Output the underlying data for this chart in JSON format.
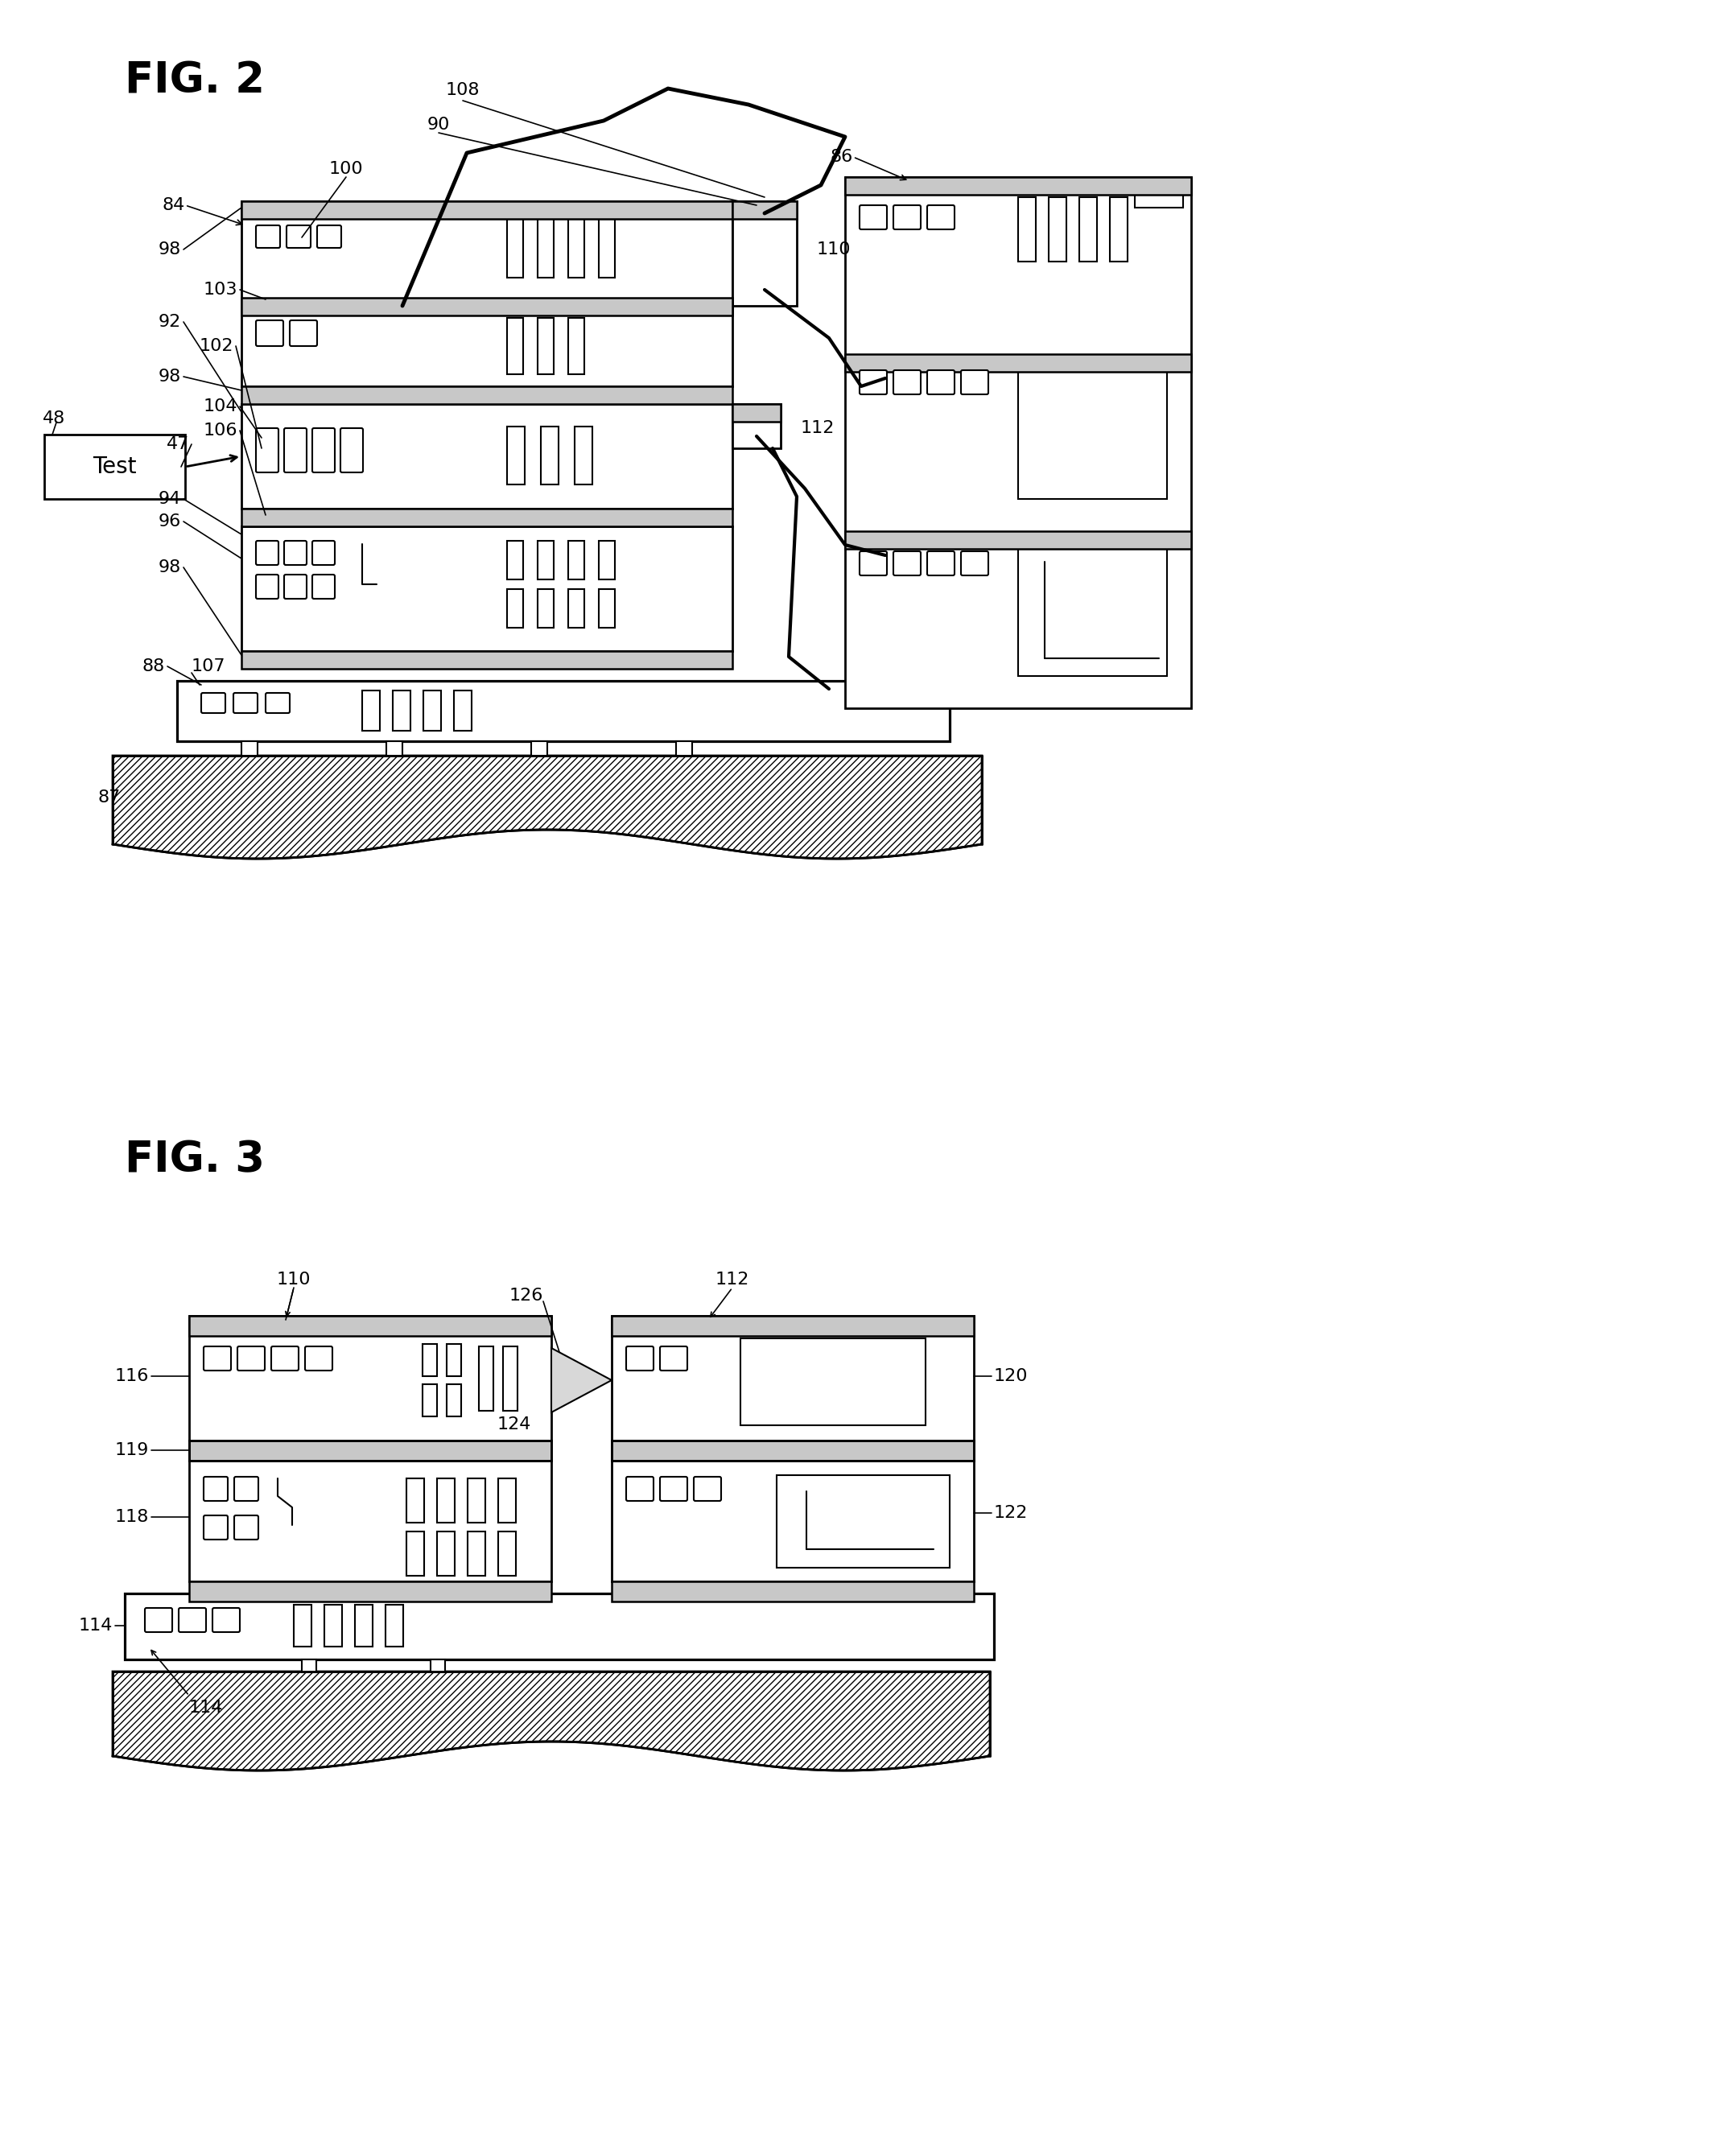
{
  "bg_color": "#ffffff",
  "fig2_title": "FIG. 2",
  "fig3_title": "FIG. 3",
  "dot_fill": "#c8c8c8",
  "lw_main": 2.0,
  "lw_inner": 1.5,
  "font_label": 16,
  "font_title": 38
}
